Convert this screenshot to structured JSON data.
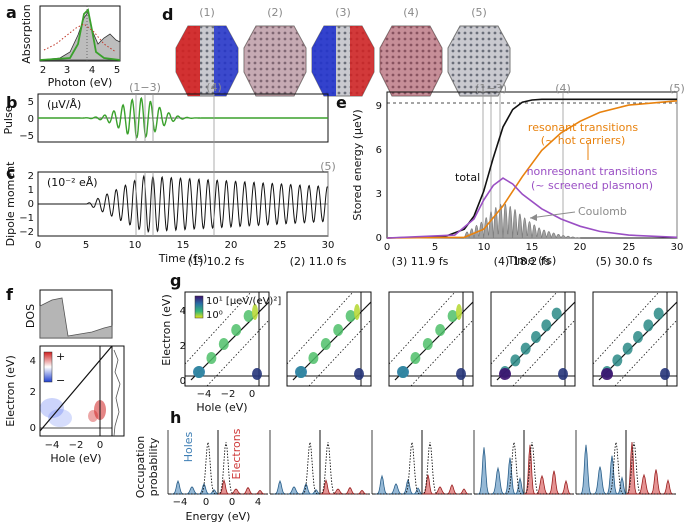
{
  "colors": {
    "green": "#3aa12c",
    "orange": "#e8820e",
    "purple": "#9a4fc4",
    "gray": "#8c8c8c",
    "blue": "#3f7fb5",
    "red": "#cf3a3a"
  },
  "panels": {
    "a": "a",
    "b": "b",
    "c": "c",
    "d": "d",
    "e": "e",
    "f": "f",
    "g": "g",
    "h": "h"
  },
  "panel_a": {
    "ylabel": "Absorption",
    "xlabel": "Photon (eV)",
    "ticks": [
      "2",
      "3",
      "4",
      "5"
    ]
  },
  "panel_b": {
    "ylabel": "Pulse",
    "unit": "(μV/Å)",
    "yticks": [
      "5",
      "0",
      "−5"
    ],
    "markers": [
      "(1−3)",
      "(4)"
    ]
  },
  "panel_c": {
    "ylabel": "Dipole moment",
    "unit": "(10⁻² eÅ)",
    "yticks": [
      "2",
      "1",
      "0",
      "−1",
      "−2"
    ],
    "xlabel": "Time (fs)",
    "xticks": [
      "0",
      "5",
      "10",
      "15",
      "20",
      "25",
      "30"
    ],
    "marker5": "(5)"
  },
  "panel_d": {
    "labels": [
      "(1)",
      "(2)",
      "(3)",
      "(4)",
      "(5)"
    ]
  },
  "panel_e": {
    "ylabel": "Stored energy (μeV)",
    "xlabel": "Time (fs)",
    "yticks": [
      "0",
      "3",
      "6",
      "9"
    ],
    "xticks": [
      "0",
      "5",
      "10",
      "15",
      "20",
      "25",
      "30"
    ],
    "markers": [
      "(1−3)",
      "(4)",
      "(5)"
    ],
    "total": "total",
    "resonant1": "resonant transitions",
    "resonant2": "(~ hot carriers)",
    "nonres1": "nonresonant transitions",
    "nonres2": "(~ screened plasmon)",
    "coulomb": "Coulomb"
  },
  "panel_f": {
    "dos": "DOS",
    "ylabel": "Electron (eV)",
    "xlabel": "Hole (eV)",
    "yticks": [
      "4",
      "2",
      "0"
    ],
    "xticks": [
      "−4",
      "−2",
      "0"
    ],
    "plus": "+",
    "minus": "−"
  },
  "panel_g": {
    "titles": [
      "(1) 10.2 fs",
      "(2) 11.0 fs",
      "(3) 11.9 fs",
      "(4) 18.2 fs",
      "(5) 30.0 fs"
    ],
    "ylabel": "Electron (eV)",
    "xlabel": "Hole (eV)",
    "yticks": [
      "4",
      "2",
      "0"
    ],
    "xticks": [
      "−4",
      "−2",
      "0"
    ],
    "cbar_top": "10¹ [μeV/(eV)²]",
    "cbar_bot": "10⁰"
  },
  "panel_h": {
    "ylabel1": "Occupation",
    "ylabel2": "probability",
    "xlabel": "Energy (eV)",
    "holes": "Holes",
    "electrons": "Electrons",
    "xticks": [
      "−4",
      "0",
      "0",
      "4"
    ]
  },
  "chart_data": [
    {
      "type": "line",
      "title": "Stored energy",
      "xlabel": "Time (fs)",
      "ylabel": "Stored energy (μeV)",
      "xlim": [
        0,
        30
      ],
      "ylim": [
        0,
        10
      ],
      "series": [
        {
          "name": "total",
          "x": [
            0,
            6,
            8,
            9,
            10,
            11,
            12,
            13,
            14,
            15,
            16,
            30
          ],
          "values": [
            0,
            0.1,
            0.6,
            1.5,
            3.2,
            5.5,
            7.6,
            8.8,
            9.3,
            9.45,
            9.5,
            9.5
          ]
        },
        {
          "name": "resonant transitions",
          "x": [
            0,
            8,
            10,
            12,
            14,
            16,
            18,
            20,
            22,
            25,
            30
          ],
          "values": [
            0,
            0.05,
            0.6,
            2.2,
            4.2,
            6,
            7.2,
            8,
            8.6,
            9.1,
            9.4
          ]
        },
        {
          "name": "nonresonant transitions",
          "x": [
            0,
            7,
            9,
            10,
            11,
            12,
            13,
            14,
            16,
            18,
            20,
            22,
            25,
            30
          ],
          "values": [
            0,
            0.2,
            1.3,
            2.6,
            3.6,
            4.1,
            3.7,
            3,
            2,
            1.3,
            0.8,
            0.45,
            0.2,
            0.05
          ]
        },
        {
          "name": "Coulomb",
          "x": [
            0,
            8,
            10,
            11,
            12,
            13,
            14,
            15,
            16,
            18,
            20
          ],
          "values": [
            0,
            0.3,
            1.2,
            2,
            2.4,
            2.1,
            1.5,
            1,
            0.6,
            0.2,
            0
          ]
        }
      ]
    }
  ]
}
